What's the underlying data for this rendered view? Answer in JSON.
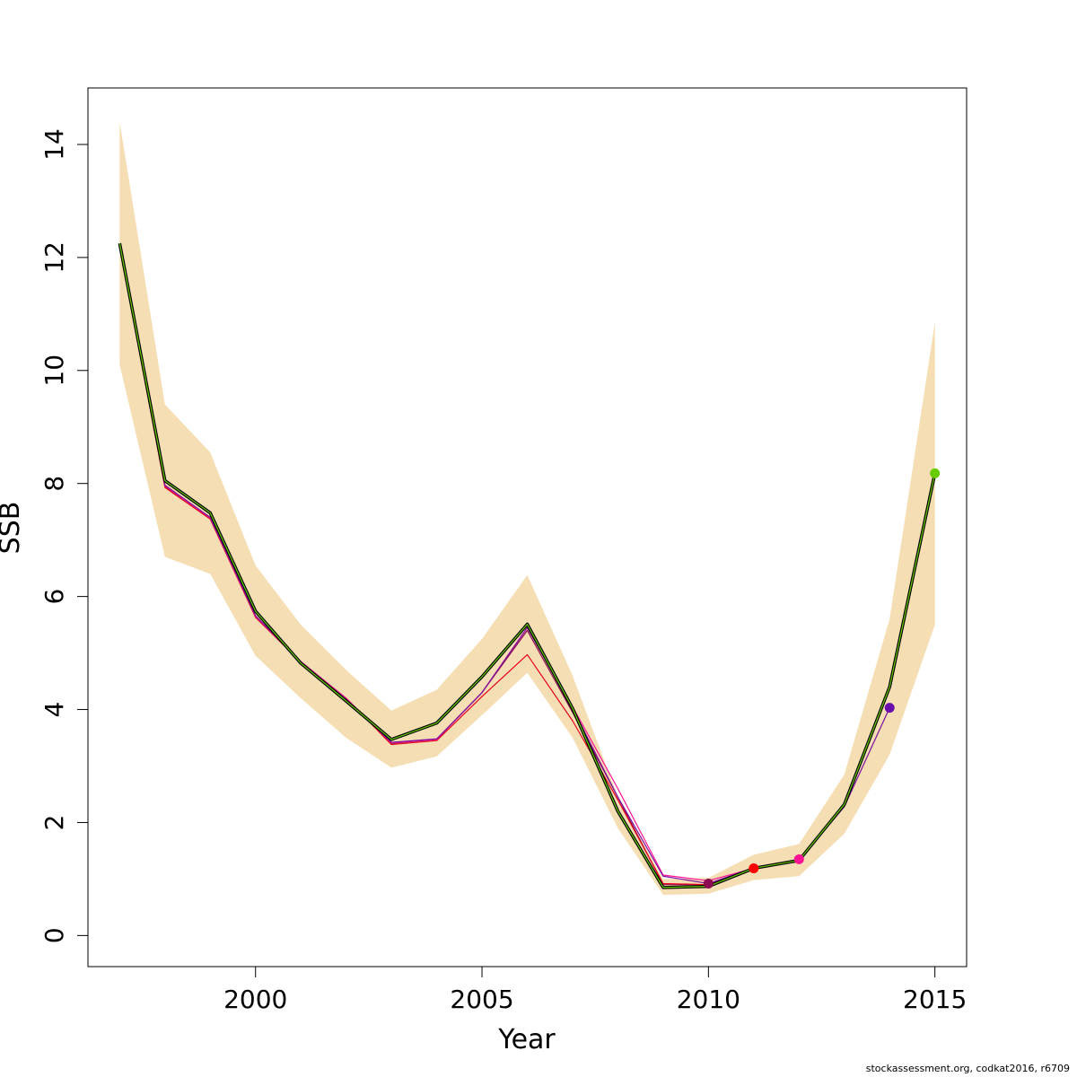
{
  "chart_data": {
    "type": "line",
    "xlabel": "Year",
    "ylabel": "SSB",
    "xlim": [
      1996.3,
      2015.7
    ],
    "ylim": [
      -0.55,
      15.0
    ],
    "xticks": [
      2000,
      2005,
      2010,
      2015
    ],
    "yticks": [
      0,
      2,
      4,
      6,
      8,
      10,
      12,
      14
    ],
    "grid": false,
    "band_color": "#F5DEB3",
    "x": [
      1997,
      1998,
      1999,
      2000,
      2001,
      2002,
      2003,
      2004,
      2005,
      2006,
      2007,
      2008,
      2009,
      2010,
      2011,
      2012,
      2013,
      2014,
      2015
    ],
    "band": {
      "lower": [
        10.1,
        6.7,
        6.4,
        4.95,
        4.2,
        3.5,
        2.97,
        3.17,
        3.9,
        4.65,
        3.5,
        1.9,
        0.72,
        0.74,
        0.98,
        1.05,
        1.8,
        3.2,
        5.5
      ],
      "upper": [
        14.4,
        9.4,
        8.55,
        6.55,
        5.5,
        4.7,
        3.98,
        4.35,
        5.25,
        6.38,
        4.6,
        2.45,
        1.0,
        1.02,
        1.43,
        1.62,
        2.85,
        5.6,
        10.85
      ]
    },
    "series": [
      {
        "color": "#000000",
        "width": 3.5,
        "x": [
          1997,
          1998,
          1999,
          2000,
          2001,
          2002,
          2003,
          2004,
          2005,
          2006,
          2007,
          2008,
          2009,
          2010,
          2011,
          2012,
          2013,
          2014,
          2015
        ],
        "values": [
          12.25,
          8.05,
          7.48,
          5.74,
          4.82,
          4.15,
          3.47,
          3.76,
          4.58,
          5.51,
          4.02,
          2.2,
          0.85,
          0.87,
          1.19,
          1.33,
          2.32,
          4.4,
          8.18
        ]
      },
      {
        "color": "#66CC00",
        "width": 1.2,
        "x": [
          1997,
          1998,
          1999,
          2000,
          2001,
          2002,
          2003,
          2004,
          2005,
          2006,
          2007,
          2008,
          2009,
          2010,
          2011,
          2012,
          2013,
          2014,
          2015
        ],
        "values": [
          12.25,
          8.05,
          7.48,
          5.74,
          4.82,
          4.15,
          3.47,
          3.76,
          4.58,
          5.51,
          4.02,
          2.2,
          0.85,
          0.87,
          1.19,
          1.33,
          2.32,
          4.4,
          8.18
        ]
      },
      {
        "color": "#7B0FA0",
        "width": 1.2,
        "x": [
          1997,
          1998,
          1999,
          2000,
          2001,
          2002,
          2003,
          2004,
          2005,
          2006,
          2007,
          2008,
          2009,
          2010,
          2011,
          2012,
          2013,
          2014
        ],
        "values": [
          12.22,
          7.97,
          7.4,
          5.66,
          4.84,
          4.18,
          3.42,
          3.48,
          4.3,
          5.45,
          4.02,
          2.45,
          1.05,
          0.92,
          1.2,
          1.33,
          2.28,
          4.03
        ]
      },
      {
        "color": "#FF1493",
        "width": 1.2,
        "x": [
          1997,
          1998,
          1999,
          2000,
          2001,
          2002,
          2003,
          2004,
          2005,
          2006,
          2007,
          2008,
          2009,
          2010,
          2011,
          2012
        ],
        "values": [
          12.22,
          7.96,
          7.39,
          5.65,
          4.85,
          4.2,
          3.41,
          3.47,
          4.3,
          5.45,
          4.05,
          2.6,
          1.07,
          0.97,
          1.19,
          1.35
        ]
      },
      {
        "color": "#E8001A",
        "width": 1.2,
        "x": [
          1997,
          1998,
          1999,
          2000,
          2001,
          2002,
          2003,
          2004,
          2005,
          2006,
          2007,
          2008,
          2009,
          2010,
          2011
        ],
        "values": [
          12.2,
          7.93,
          7.37,
          5.63,
          4.84,
          4.2,
          3.38,
          3.45,
          4.23,
          4.97,
          3.8,
          2.4,
          0.92,
          0.9,
          1.19
        ]
      },
      {
        "color": "#8B0A50",
        "width": 1.2,
        "x": [
          1997,
          1998,
          1999,
          2000,
          2001,
          2002,
          2003,
          2004,
          2005,
          2006,
          2007,
          2008,
          2009,
          2010
        ],
        "values": [
          12.2,
          7.95,
          7.4,
          5.65,
          4.84,
          4.2,
          3.4,
          3.47,
          4.3,
          5.4,
          3.95,
          2.45,
          0.9,
          0.9
        ]
      }
    ],
    "points": [
      {
        "x": 2010,
        "y": 0.92,
        "color": "#8B0A50"
      },
      {
        "x": 2011,
        "y": 1.19,
        "color": "#FF0000"
      },
      {
        "x": 2012,
        "y": 1.35,
        "color": "#FF1493"
      },
      {
        "x": 2014,
        "y": 4.03,
        "color": "#6A0DAD"
      },
      {
        "x": 2015,
        "y": 8.18,
        "color": "#66CC00"
      }
    ]
  },
  "footer": "stockassessment.org, codkat2016, r6709"
}
